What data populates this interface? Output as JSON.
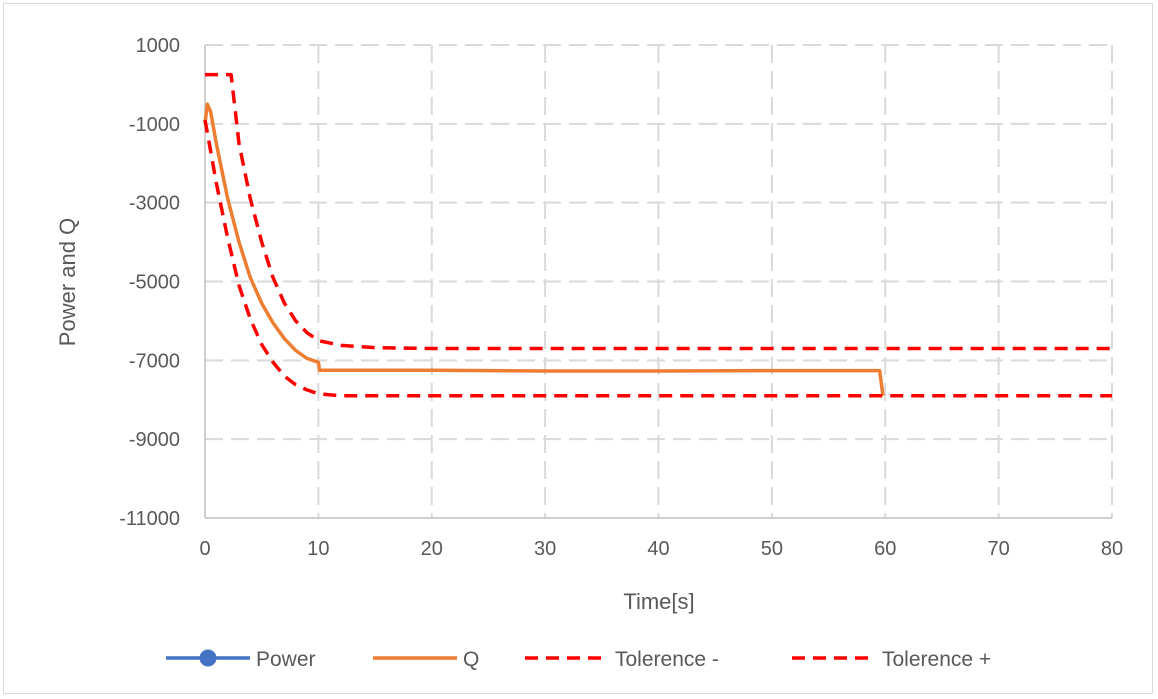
{
  "chart_data": {
    "type": "line",
    "title": "",
    "xlabel": "Time[s]",
    "ylabel": "Power and Q",
    "xlim": [
      0,
      80
    ],
    "ylim": [
      -11000,
      1000
    ],
    "x_ticks": [
      0,
      10,
      20,
      30,
      40,
      50,
      60,
      70,
      80
    ],
    "y_ticks": [
      1000,
      -1000,
      -3000,
      -5000,
      -7000,
      -9000,
      -11000
    ],
    "grid": "dashed",
    "legend_position": "bottom",
    "series": [
      {
        "name": "Power",
        "color": "#4472c4",
        "style": "solid-marker",
        "points": []
      },
      {
        "name": "Q",
        "color": "#ed7d31",
        "style": "solid",
        "points": [
          [
            0,
            -1000
          ],
          [
            0.2,
            -500
          ],
          [
            0.5,
            -700
          ],
          [
            1,
            -1500
          ],
          [
            2,
            -2900
          ],
          [
            3,
            -4000
          ],
          [
            4,
            -4900
          ],
          [
            5,
            -5550
          ],
          [
            6,
            -6050
          ],
          [
            7,
            -6450
          ],
          [
            8,
            -6750
          ],
          [
            9,
            -6950
          ],
          [
            10,
            -7050
          ],
          [
            10.1,
            -7250
          ],
          [
            20,
            -7250
          ],
          [
            30,
            -7270
          ],
          [
            40,
            -7270
          ],
          [
            50,
            -7260
          ],
          [
            59.5,
            -7260
          ],
          [
            59.8,
            -7900
          ]
        ]
      },
      {
        "name": "Tolerence -",
        "color": "#ff0000",
        "style": "dashed",
        "points": [
          [
            0,
            -900
          ],
          [
            0.5,
            -1700
          ],
          [
            1,
            -2500
          ],
          [
            2,
            -3900
          ],
          [
            3,
            -5100
          ],
          [
            4,
            -5950
          ],
          [
            5,
            -6600
          ],
          [
            6,
            -7050
          ],
          [
            7,
            -7400
          ],
          [
            8,
            -7620
          ],
          [
            9,
            -7750
          ],
          [
            10,
            -7850
          ],
          [
            12,
            -7900
          ],
          [
            20,
            -7900
          ],
          [
            40,
            -7900
          ],
          [
            60,
            -7900
          ],
          [
            80,
            -7900
          ]
        ]
      },
      {
        "name": "Tolerence +",
        "color": "#ff0000",
        "style": "dashed",
        "points": [
          [
            0,
            250
          ],
          [
            2.3,
            250
          ],
          [
            3,
            -1500
          ],
          [
            4,
            -2900
          ],
          [
            5,
            -4000
          ],
          [
            6,
            -4900
          ],
          [
            7,
            -5550
          ],
          [
            8,
            -6000
          ],
          [
            9,
            -6300
          ],
          [
            10,
            -6500
          ],
          [
            12,
            -6620
          ],
          [
            15,
            -6680
          ],
          [
            20,
            -6700
          ],
          [
            40,
            -6700
          ],
          [
            60,
            -6700
          ],
          [
            80,
            -6700
          ]
        ]
      }
    ]
  }
}
